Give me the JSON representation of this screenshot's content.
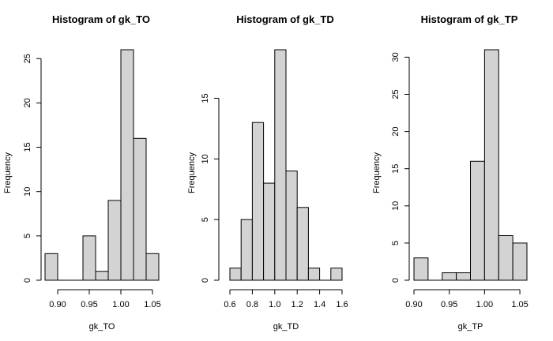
{
  "chart_data": [
    {
      "type": "bar",
      "title": "Histogram of gk_TO",
      "xlabel": "gk_TO",
      "ylabel": "Frequency",
      "breaks": [
        0.88,
        0.9,
        0.92,
        0.94,
        0.96,
        0.98,
        1.0,
        1.02,
        1.04,
        1.06
      ],
      "values": [
        3,
        0,
        0,
        5,
        1,
        9,
        26,
        16,
        3
      ],
      "xticks": [
        0.9,
        0.95,
        1.0,
        1.05
      ],
      "xtick_labels": [
        "0.90",
        "0.95",
        "1.00",
        "1.05"
      ],
      "yticks": [
        0,
        5,
        10,
        15,
        20,
        25
      ],
      "yticks_labels": [
        "0",
        "5",
        "10",
        "15",
        "20",
        "25"
      ],
      "fill": "#d3d3d3"
    },
    {
      "type": "bar",
      "title": "Histogram of gk_TD",
      "xlabel": "gk_TD",
      "ylabel": "Frequency",
      "breaks": [
        0.6,
        0.7,
        0.8,
        0.9,
        1.0,
        1.1,
        1.2,
        1.3,
        1.4,
        1.5,
        1.6
      ],
      "values": [
        1,
        5,
        13,
        8,
        19,
        9,
        6,
        1,
        0,
        1
      ],
      "xticks": [
        0.6,
        0.8,
        1.0,
        1.2,
        1.4,
        1.6
      ],
      "xtick_labels": [
        "0.6",
        "0.8",
        "1.0",
        "1.2",
        "1.4",
        "1.6"
      ],
      "yticks": [
        0,
        5,
        10,
        15
      ],
      "yticks_labels": [
        "0",
        "5",
        "10",
        "15"
      ],
      "fill": "#d3d3d3"
    },
    {
      "type": "bar",
      "title": "Histogram of gk_TP",
      "xlabel": "gk_TP",
      "ylabel": "Frequency",
      "breaks": [
        0.9,
        0.92,
        0.94,
        0.96,
        0.98,
        1.0,
        1.02,
        1.04,
        1.06
      ],
      "values": [
        3,
        0,
        1,
        1,
        16,
        31,
        6,
        5
      ],
      "xticks": [
        0.9,
        0.95,
        1.0,
        1.05
      ],
      "xtick_labels": [
        "0.90",
        "0.95",
        "1.00",
        "1.05"
      ],
      "yticks": [
        0,
        5,
        10,
        15,
        20,
        25,
        30
      ],
      "yticks_labels": [
        "0",
        "5",
        "10",
        "15",
        "20",
        "25",
        "30"
      ],
      "fill": "#d3d3d3"
    }
  ]
}
